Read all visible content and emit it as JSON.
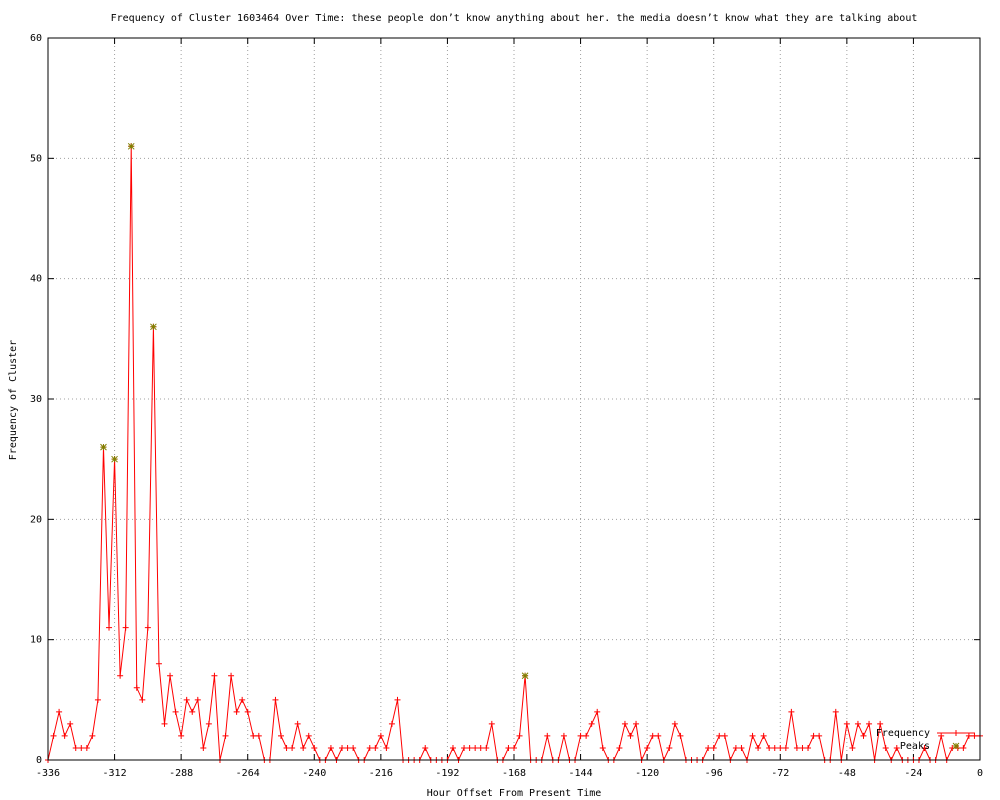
{
  "chart_data": {
    "type": "line",
    "title": "Frequency of Cluster 1603464 Over Time: these people don’t know anything about her. the media doesn’t know what they are talking about",
    "x_label": "Hour Offset From Present Time",
    "y_label": "Frequency of Cluster",
    "xlim": [
      -336,
      0
    ],
    "xticks": [
      -336,
      -312,
      -288,
      -264,
      -240,
      -216,
      -192,
      -168,
      -144,
      -120,
      -96,
      -72,
      -48,
      -24,
      0
    ],
    "ylim": [
      0,
      60
    ],
    "yticks": [
      0,
      10,
      20,
      30,
      40,
      50,
      60
    ],
    "grid": true,
    "legend": "bottom right",
    "series": [
      {
        "name": "Frequency",
        "color": "#ff0000",
        "marker": "plus",
        "x": [
          -336,
          -334,
          -332,
          -330,
          -328,
          -326,
          -324,
          -322,
          -320,
          -318,
          -316,
          -314,
          -312,
          -310,
          -308,
          -306,
          -304,
          -302,
          -300,
          -298,
          -296,
          -294,
          -292,
          -290,
          -288,
          -286,
          -284,
          -282,
          -280,
          -278,
          -276,
          -274,
          -272,
          -270,
          -268,
          -266,
          -264,
          -262,
          -260,
          -258,
          -256,
          -254,
          -252,
          -250,
          -248,
          -246,
          -244,
          -242,
          -240,
          -238,
          -236,
          -234,
          -232,
          -230,
          -228,
          -226,
          -224,
          -222,
          -220,
          -218,
          -216,
          -214,
          -212,
          -210,
          -208,
          -206,
          -204,
          -202,
          -200,
          -198,
          -196,
          -194,
          -192,
          -190,
          -188,
          -186,
          -184,
          -182,
          -180,
          -178,
          -176,
          -174,
          -172,
          -170,
          -168,
          -166,
          -164,
          -162,
          -160,
          -158,
          -156,
          -154,
          -152,
          -150,
          -148,
          -146,
          -144,
          -142,
          -140,
          -138,
          -136,
          -134,
          -132,
          -130,
          -128,
          -126,
          -124,
          -122,
          -120,
          -118,
          -116,
          -114,
          -112,
          -110,
          -108,
          -106,
          -104,
          -102,
          -100,
          -98,
          -96,
          -94,
          -92,
          -90,
          -88,
          -86,
          -84,
          -82,
          -80,
          -78,
          -76,
          -74,
          -72,
          -70,
          -68,
          -66,
          -64,
          -62,
          -60,
          -58,
          -56,
          -54,
          -52,
          -50,
          -48,
          -46,
          -44,
          -42,
          -40,
          -38,
          -36,
          -34,
          -32,
          -30,
          -28,
          -26,
          -24,
          -22,
          -20,
          -18,
          -16,
          -14,
          -12,
          -10,
          -8,
          -6,
          -4,
          -2,
          0
        ],
        "values": [
          0,
          2,
          4,
          2,
          3,
          1,
          1,
          1,
          2,
          5,
          26,
          11,
          25,
          7,
          11,
          51,
          6,
          5,
          11,
          36,
          8,
          3,
          7,
          4,
          2,
          5,
          4,
          5,
          1,
          3,
          7,
          0,
          2,
          7,
          4,
          5,
          4,
          2,
          2,
          0,
          0,
          5,
          2,
          1,
          1,
          3,
          1,
          2,
          1,
          0,
          0,
          1,
          0,
          1,
          1,
          1,
          0,
          0,
          1,
          1,
          2,
          1,
          3,
          5,
          0,
          0,
          0,
          0,
          1,
          0,
          0,
          0,
          0,
          1,
          0,
          1,
          1,
          1,
          1,
          1,
          3,
          0,
          0,
          1,
          1,
          2,
          7,
          0,
          0,
          0,
          2,
          0,
          0,
          2,
          0,
          0,
          2,
          2,
          3,
          4,
          1,
          0,
          0,
          1,
          3,
          2,
          3,
          0,
          1,
          2,
          2,
          0,
          1,
          3,
          2,
          0,
          0,
          0,
          0,
          1,
          1,
          2,
          2,
          0,
          1,
          1,
          0,
          2,
          1,
          2,
          1,
          1,
          1,
          1,
          4,
          1,
          1,
          1,
          2,
          2,
          0,
          0,
          4,
          0,
          3,
          1,
          3,
          2,
          3,
          0,
          3,
          1,
          0,
          1,
          0,
          0,
          0,
          0,
          1,
          0,
          0,
          2,
          0,
          1,
          1,
          1,
          2,
          2,
          2
        ]
      },
      {
        "name": "Peaks",
        "color": "#808000",
        "marker": "star",
        "line": false,
        "x": [
          -316,
          -312,
          -306,
          -298,
          -164
        ],
        "values": [
          26,
          25,
          51,
          36,
          7
        ]
      }
    ]
  }
}
